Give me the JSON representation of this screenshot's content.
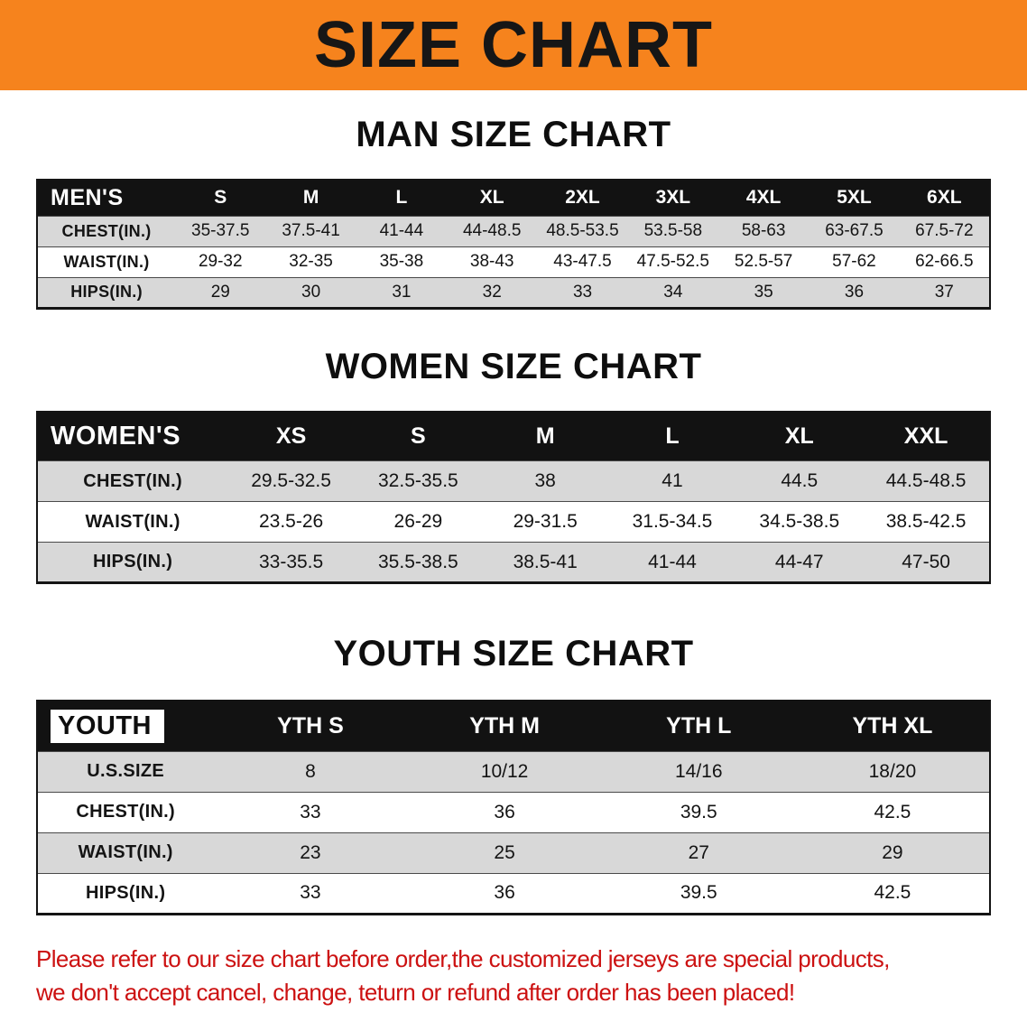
{
  "banner": {
    "title": "SIZE CHART"
  },
  "headings": {
    "men": "MAN SIZE CHART",
    "women": "WOMEN SIZE CHART",
    "youth": "YOUTH SIZE CHART"
  },
  "tables": {
    "men": {
      "label": "MEN'S",
      "columns": [
        "S",
        "M",
        "L",
        "XL",
        "2XL",
        "3XL",
        "4XL",
        "5XL",
        "6XL"
      ],
      "rows": [
        {
          "label": "CHEST(IN.)",
          "values": [
            "35-37.5",
            "37.5-41",
            "41-44",
            "44-48.5",
            "48.5-53.5",
            "53.5-58",
            "58-63",
            "63-67.5",
            "67.5-72"
          ]
        },
        {
          "label": "WAIST(IN.)",
          "values": [
            "29-32",
            "32-35",
            "35-38",
            "38-43",
            "43-47.5",
            "47.5-52.5",
            "52.5-57",
            "57-62",
            "62-66.5"
          ]
        },
        {
          "label": "HIPS(IN.)",
          "values": [
            "29",
            "30",
            "31",
            "32",
            "33",
            "34",
            "35",
            "36",
            "37"
          ]
        }
      ]
    },
    "women": {
      "label": "WOMEN'S",
      "columns": [
        "XS",
        "S",
        "M",
        "L",
        "XL",
        "XXL"
      ],
      "rows": [
        {
          "label": "CHEST(IN.)",
          "values": [
            "29.5-32.5",
            "32.5-35.5",
            "38",
            "41",
            "44.5",
            "44.5-48.5"
          ]
        },
        {
          "label": "WAIST(IN.)",
          "values": [
            "23.5-26",
            "26-29",
            "29-31.5",
            "31.5-34.5",
            "34.5-38.5",
            "38.5-42.5"
          ]
        },
        {
          "label": "HIPS(IN.)",
          "values": [
            "33-35.5",
            "35.5-38.5",
            "38.5-41",
            "41-44",
            "44-47",
            "47-50"
          ]
        }
      ]
    },
    "youth": {
      "label": "YOUTH",
      "columns": [
        "YTH S",
        "YTH M",
        "YTH L",
        "YTH XL"
      ],
      "rows": [
        {
          "label": "U.S.SIZE",
          "values": [
            "8",
            "10/12",
            "14/16",
            "18/20"
          ]
        },
        {
          "label": "CHEST(IN.)",
          "values": [
            "33",
            "36",
            "39.5",
            "42.5"
          ]
        },
        {
          "label": "WAIST(IN.)",
          "values": [
            "23",
            "25",
            "27",
            "29"
          ]
        },
        {
          "label": "HIPS(IN.)",
          "values": [
            "33",
            "36",
            "39.5",
            "42.5"
          ]
        }
      ]
    }
  },
  "note": {
    "line1": "Please refer to our size chart before order,the customized jerseys are special products,",
    "line2": "we don't accept cancel, change, teturn or refund after order has been placed!"
  },
  "colors": {
    "banner_orange": "#F6831D",
    "table_header_black": "#121212",
    "row_stripe_gray": "#D8D8D8",
    "note_red": "#CC1111"
  }
}
